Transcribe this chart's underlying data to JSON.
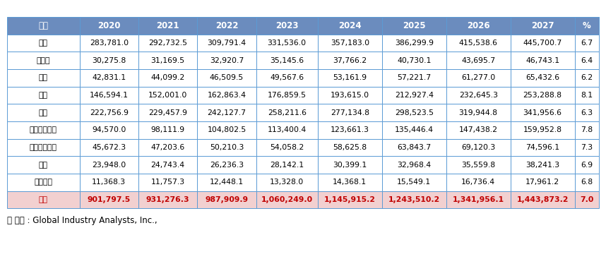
{
  "headers": [
    "지역",
    "2020",
    "2021",
    "2022",
    "2023",
    "2024",
    "2025",
    "2026",
    "2027",
    "%"
  ],
  "rows": [
    [
      "미국",
      "283,781.0",
      "292,732.5",
      "309,791.4",
      "331,536.0",
      "357,183.0",
      "386,299.9",
      "415,538.6",
      "445,700.7",
      "6.7"
    ],
    [
      "캐나다",
      "30,275.8",
      "31,169.5",
      "32,920.7",
      "35,145.6",
      "37,766.2",
      "40,730.1",
      "43,695.7",
      "46,743.1",
      "6.4"
    ],
    [
      "일본",
      "42,831.1",
      "44,099.2",
      "46,509.5",
      "49,567.6",
      "53,161.9",
      "57,221.7",
      "61,277.0",
      "65,432.6",
      "6.2"
    ],
    [
      "중국",
      "146,594.1",
      "152,001.0",
      "162,863.4",
      "176,859.5",
      "193,615.0",
      "212,927.4",
      "232,645.3",
      "253,288.8",
      "8.1"
    ],
    [
      "유럽",
      "222,756.9",
      "229,457.9",
      "242,127.7",
      "258,211.6",
      "277,134.8",
      "298,523.5",
      "319,944.8",
      "341,956.6",
      "6.3"
    ],
    [
      "아시아태평양",
      "94,570.0",
      "98,111.9",
      "104,802.5",
      "113,400.4",
      "123,661.3",
      "135,446.4",
      "147,438.2",
      "159,952.8",
      "7.8"
    ],
    [
      "라틴아메리카",
      "45,672.3",
      "47,203.6",
      "50,210.3",
      "54,058.2",
      "58,625.8",
      "63,843.7",
      "69,120.3",
      "74,596.1",
      "7.3"
    ],
    [
      "중동",
      "23,948.0",
      "24,743.4",
      "26,236.3",
      "28,142.1",
      "30,399.1",
      "32,968.4",
      "35,559.8",
      "38,241.3",
      "6.9"
    ],
    [
      "아프리카",
      "11,368.3",
      "11,757.3",
      "12,448.1",
      "13,328.0",
      "14,368.1",
      "15,549.1",
      "16,736.4",
      "17,961.2",
      "6.8"
    ]
  ],
  "footer": [
    "합계",
    "901,797.5",
    "931,276.3",
    "987,909.9",
    "1,060,249.0",
    "1,145,915.2",
    "1,243,510.2",
    "1,341,956.1",
    "1,443,873.2",
    "7.0"
  ],
  "source": "－ 출처 : Global Industry Analysts, Inc.,",
  "header_bg": "#6b8cbe",
  "header_text": "#ffffff",
  "footer_bg": "#f2d0d0",
  "footer_text": "#c00000",
  "border_color": "#5b9bd5",
  "col_widths_ratio": [
    1.35,
    1.1,
    1.1,
    1.1,
    1.15,
    1.2,
    1.2,
    1.2,
    1.2,
    0.45
  ],
  "fontsize": 7.8,
  "header_fontsize": 8.5
}
